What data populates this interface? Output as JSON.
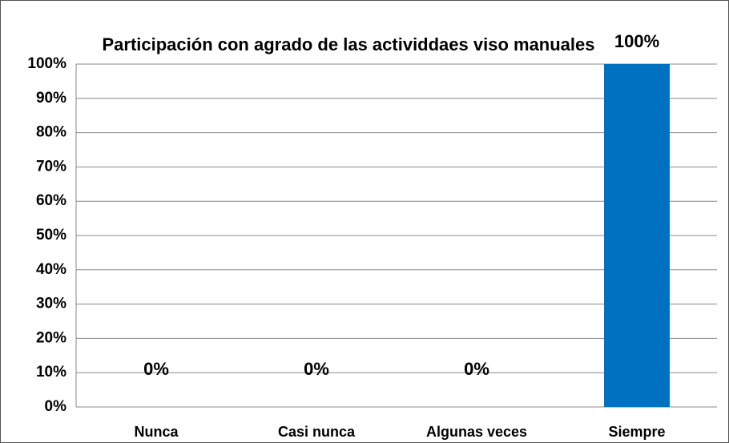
{
  "chart_data": {
    "type": "bar",
    "title": "Participación con agrado de las actividdaes viso manuales",
    "categories": [
      "Nunca",
      "Casi nunca",
      "Algunas veces",
      "Siempre"
    ],
    "values": [
      0,
      0,
      0,
      100
    ],
    "value_labels": [
      "0%",
      "0%",
      "0%",
      "100%"
    ],
    "color": "#0070c0",
    "ylim": [
      0,
      100
    ],
    "yticks": [
      {
        "value": 0,
        "label": "0%"
      },
      {
        "value": 10,
        "label": "10%"
      },
      {
        "value": 20,
        "label": "20%"
      },
      {
        "value": 30,
        "label": "30%"
      },
      {
        "value": 40,
        "label": "40%"
      },
      {
        "value": 50,
        "label": "50%"
      },
      {
        "value": 60,
        "label": "60%"
      },
      {
        "value": 70,
        "label": "70%"
      },
      {
        "value": 80,
        "label": "80%"
      },
      {
        "value": 90,
        "label": "90%"
      },
      {
        "value": 100,
        "label": "100%"
      }
    ],
    "grid": true
  }
}
